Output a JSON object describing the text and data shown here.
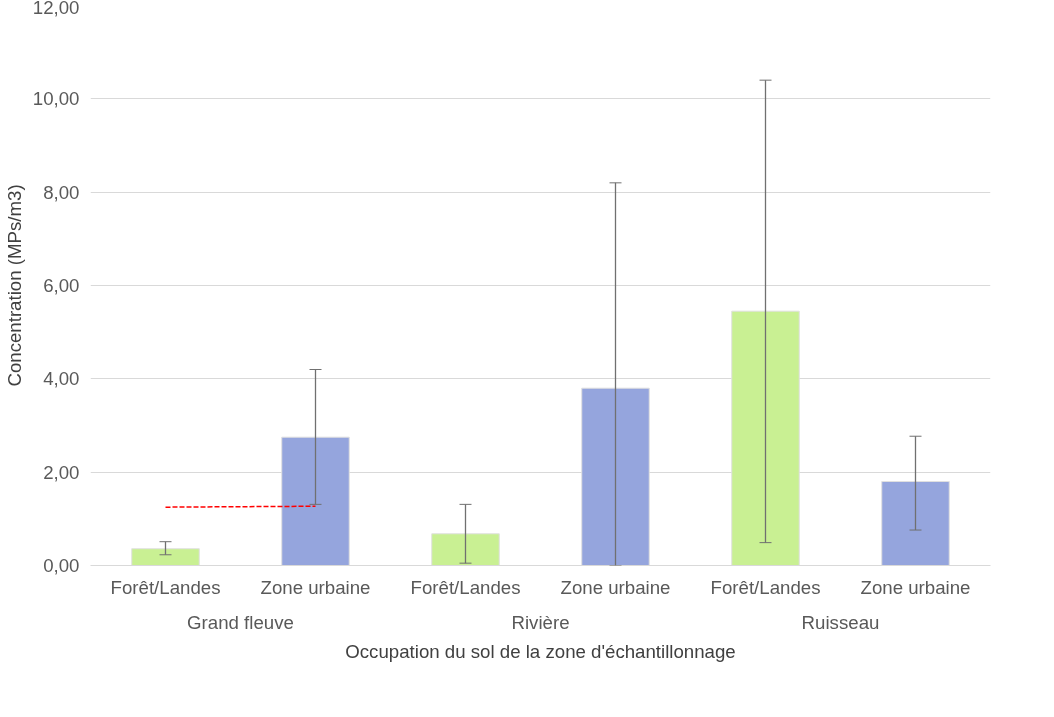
{
  "chart_data": {
    "type": "bar",
    "xlabel": "Occupation du sol de la zone d'échantillonnage",
    "ylabel": "Concentration (MPs/m3)",
    "categories": [
      "Forêt/Landes",
      "Zone urbaine",
      "Forêt/Landes",
      "Zone urbaine",
      "Forêt/Landes",
      "Zone urbaine"
    ],
    "annotations": [
      "Grand fleuve",
      "Rivière",
      "Ruisseau"
    ],
    "series": [
      {
        "values": [
          0.36,
          2.75,
          0.68,
          3.8,
          5.45,
          1.8
        ],
        "colors": [
          "#c9f093",
          "#95a5dd",
          "#c9f093",
          "#95a5dd",
          "#c9f093",
          "#95a5dd"
        ],
        "errors": [
          [
            0.23,
            0.51
          ],
          [
            1.31,
            4.2
          ],
          [
            0.05,
            1.31
          ],
          [
            0.0,
            8.2
          ],
          [
            0.49,
            10.4
          ],
          [
            0.76,
            2.77
          ]
        ]
      },
      {
        "type": "line",
        "color": "#ff0000",
        "line_style": "dashed",
        "values": [
          1.25,
          1.27,
          null,
          null,
          null,
          null
        ]
      }
    ],
    "ylim": [
      0,
      12
    ],
    "yticks": [
      {
        "value": 0,
        "label": "0,00"
      },
      {
        "value": 2,
        "label": "2,00"
      },
      {
        "value": 4,
        "label": "4,00"
      },
      {
        "value": 6,
        "label": "6,00"
      },
      {
        "value": 8,
        "label": "8,00"
      },
      {
        "value": 10,
        "label": "10,00"
      },
      {
        "value": 12,
        "label": "12,00"
      }
    ],
    "grid": "y"
  }
}
